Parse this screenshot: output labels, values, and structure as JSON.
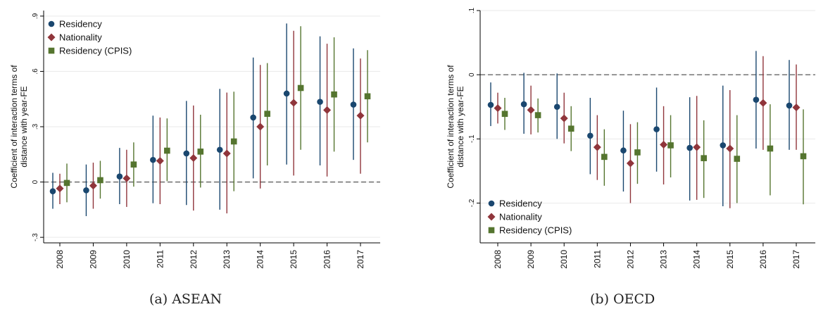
{
  "chart_data": [
    {
      "type": "errorbar",
      "caption": "(a)  ASEAN",
      "ylabel_line1": "Coefficient of interaction terms of",
      "ylabel_line2": "distance with year-FE",
      "ylim": [
        -0.33,
        0.93
      ],
      "yticks": [
        {
          "v": -0.3,
          "label": "-.3"
        },
        {
          "v": 0,
          "label": "0"
        },
        {
          "v": 0.3,
          "label": ".3"
        },
        {
          "v": 0.6,
          "label": ".6"
        },
        {
          "v": 0.9,
          "label": ".9"
        }
      ],
      "categories": [
        "2008",
        "2009",
        "2010",
        "2011",
        "2012",
        "2013",
        "2014",
        "2015",
        "2016",
        "2017"
      ],
      "reference_line": 0,
      "legend_position": "top-left",
      "series": [
        {
          "name": "Residency",
          "marker": "circle",
          "color": "#1a476f",
          "values": [
            -0.05,
            -0.045,
            0.03,
            0.12,
            0.155,
            0.175,
            0.35,
            0.48,
            0.435,
            0.42
          ],
          "low": [
            -0.145,
            -0.185,
            -0.12,
            -0.115,
            -0.125,
            -0.15,
            0.02,
            0.095,
            0.09,
            0.12
          ],
          "high": [
            0.05,
            0.095,
            0.185,
            0.36,
            0.44,
            0.505,
            0.675,
            0.86,
            0.79,
            0.725
          ]
        },
        {
          "name": "Nationality",
          "marker": "diamond",
          "color": "#90353b",
          "values": [
            -0.035,
            -0.02,
            0.02,
            0.115,
            0.13,
            0.155,
            0.3,
            0.43,
            0.39,
            0.36
          ],
          "low": [
            -0.12,
            -0.145,
            -0.135,
            -0.12,
            -0.155,
            -0.17,
            -0.035,
            0.035,
            0.03,
            0.045
          ],
          "high": [
            0.045,
            0.105,
            0.175,
            0.35,
            0.415,
            0.485,
            0.635,
            0.82,
            0.75,
            0.67
          ]
        },
        {
          "name": "Residency (CPIS)",
          "marker": "square",
          "color": "#55752f",
          "values": [
            -0.005,
            0.01,
            0.095,
            0.17,
            0.165,
            0.22,
            0.37,
            0.51,
            0.475,
            0.465
          ],
          "low": [
            -0.11,
            -0.09,
            -0.025,
            0.005,
            -0.03,
            -0.05,
            0.09,
            0.175,
            0.165,
            0.215
          ],
          "high": [
            0.1,
            0.115,
            0.215,
            0.345,
            0.365,
            0.49,
            0.645,
            0.845,
            0.785,
            0.715
          ]
        }
      ]
    },
    {
      "type": "errorbar",
      "caption": "(b)  OECD",
      "ylabel_line1": "Coefficient of interaction terms of",
      "ylabel_line2": "distance with year-FE",
      "ylim": [
        -0.262,
        0.1
      ],
      "yticks": [
        {
          "v": -0.2,
          "label": "-.2"
        },
        {
          "v": -0.1,
          "label": "-.1"
        },
        {
          "v": 0,
          "label": "0"
        },
        {
          "v": 0.1,
          "label": ".1"
        }
      ],
      "categories": [
        "2008",
        "2009",
        "2010",
        "2011",
        "2012",
        "2013",
        "2014",
        "2015",
        "2016",
        "2017"
      ],
      "reference_line": 0,
      "legend_position": "bottom-left",
      "series": [
        {
          "name": "Residency",
          "marker": "circle",
          "color": "#1a476f",
          "values": [
            -0.047,
            -0.046,
            -0.05,
            -0.095,
            -0.118,
            -0.085,
            -0.114,
            -0.11,
            -0.039,
            -0.048
          ],
          "low": [
            -0.08,
            -0.092,
            -0.1,
            -0.155,
            -0.182,
            -0.151,
            -0.196,
            -0.205,
            -0.115,
            -0.117
          ],
          "high": [
            -0.012,
            0.003,
            0.002,
            -0.036,
            -0.056,
            -0.02,
            -0.035,
            -0.017,
            0.037,
            0.023
          ]
        },
        {
          "name": "Nationality",
          "marker": "diamond",
          "color": "#90353b",
          "values": [
            -0.052,
            -0.055,
            -0.068,
            -0.113,
            -0.138,
            -0.109,
            -0.113,
            -0.115,
            -0.044,
            -0.051
          ],
          "low": [
            -0.076,
            -0.093,
            -0.107,
            -0.164,
            -0.2,
            -0.171,
            -0.195,
            -0.208,
            -0.117,
            -0.117
          ],
          "high": [
            -0.028,
            -0.017,
            -0.028,
            -0.063,
            -0.077,
            -0.049,
            -0.033,
            -0.024,
            0.029,
            0.016
          ]
        },
        {
          "name": "Residency (CPIS)",
          "marker": "square",
          "color": "#55752f",
          "values": [
            -0.061,
            -0.063,
            -0.084,
            -0.128,
            -0.121,
            -0.11,
            -0.13,
            -0.131,
            -0.115,
            -0.127
          ],
          "low": [
            -0.086,
            -0.09,
            -0.119,
            -0.173,
            -0.17,
            -0.16,
            -0.192,
            -0.2,
            -0.188,
            -0.202
          ],
          "high": [
            -0.036,
            -0.037,
            -0.049,
            -0.085,
            -0.074,
            -0.063,
            -0.071,
            -0.063,
            -0.046,
            -0.054
          ]
        }
      ]
    }
  ]
}
